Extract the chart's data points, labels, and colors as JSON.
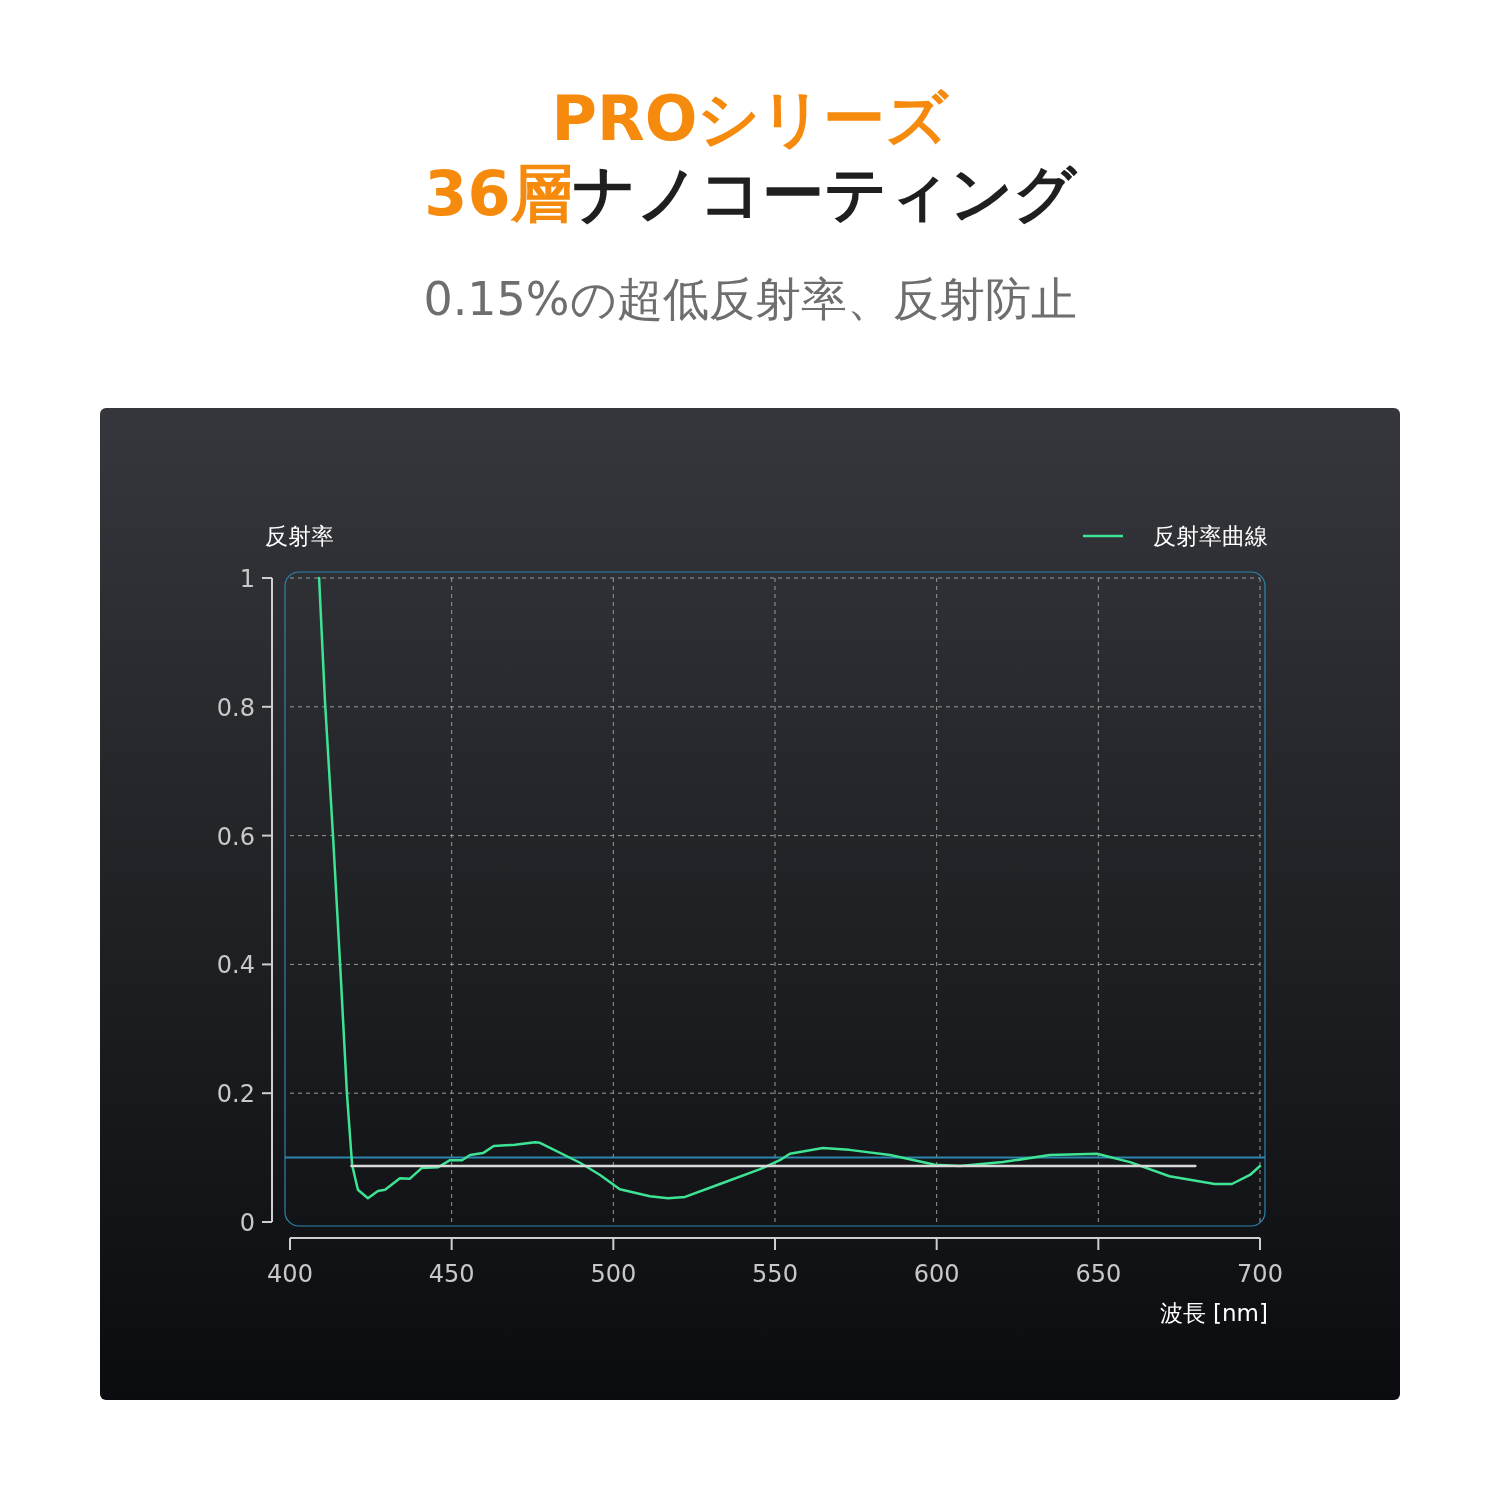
{
  "chart_data": {
    "type": "line",
    "title": "PROシリーズ\n36層ナノコーティング",
    "subtitle": "0.15%の超低反射率、反射防止",
    "xlabel": "波長 [nm]",
    "ylabel": "反射率",
    "xlim": [
      400,
      700
    ],
    "ylim": [
      0,
      1
    ],
    "xticks": [
      400,
      450,
      500,
      550,
      600,
      650,
      700
    ],
    "yticks": [
      0,
      0.2,
      0.4,
      0.6,
      0.8,
      1
    ],
    "grid": true,
    "legend": "top right",
    "line_style": "solid",
    "marker": "none",
    "ref_lines": [
      {
        "axis": "y",
        "value": 0.1,
        "color": "#2a86ad"
      }
    ],
    "series": [
      {
        "name": "反射率曲線",
        "color": "#3ee394",
        "x": [
          409,
          410.8,
          413.3,
          415.5,
          417.6,
          419.2,
          421,
          424.1,
          427.2,
          429.4,
          434,
          437,
          440.8,
          445.8,
          449.5,
          453.2,
          455.7,
          459.7,
          463,
          469.6,
          475.8,
          477.3,
          489.7,
          495.9,
          502,
          511.3,
          516.9,
          522.2,
          533,
          545.4,
          551.5,
          554.6,
          564.8,
          573,
          585.6,
          599.5,
          607.2,
          620.5,
          635,
          649.6,
          659.8,
          672,
          686,
          691.3,
          696.9,
          700
        ],
        "values": [
          1.0,
          0.81,
          0.6,
          0.4,
          0.2,
          0.089,
          0.05,
          0.037,
          0.048,
          0.05,
          0.068,
          0.067,
          0.084,
          0.085,
          0.096,
          0.096,
          0.104,
          0.107,
          0.118,
          0.12,
          0.124,
          0.123,
          0.092,
          0.073,
          0.051,
          0.04,
          0.037,
          0.039,
          0.059,
          0.082,
          0.096,
          0.106,
          0.115,
          0.112,
          0.104,
          0.089,
          0.087,
          0.093,
          0.104,
          0.106,
          0.093,
          0.071,
          0.059,
          0.059,
          0.073,
          0.087
        ]
      },
      {
        "color": "#d9d9d9",
        "x": [
          419,
          680
        ],
        "values": [
          0.087,
          0.087
        ]
      }
    ]
  }
}
